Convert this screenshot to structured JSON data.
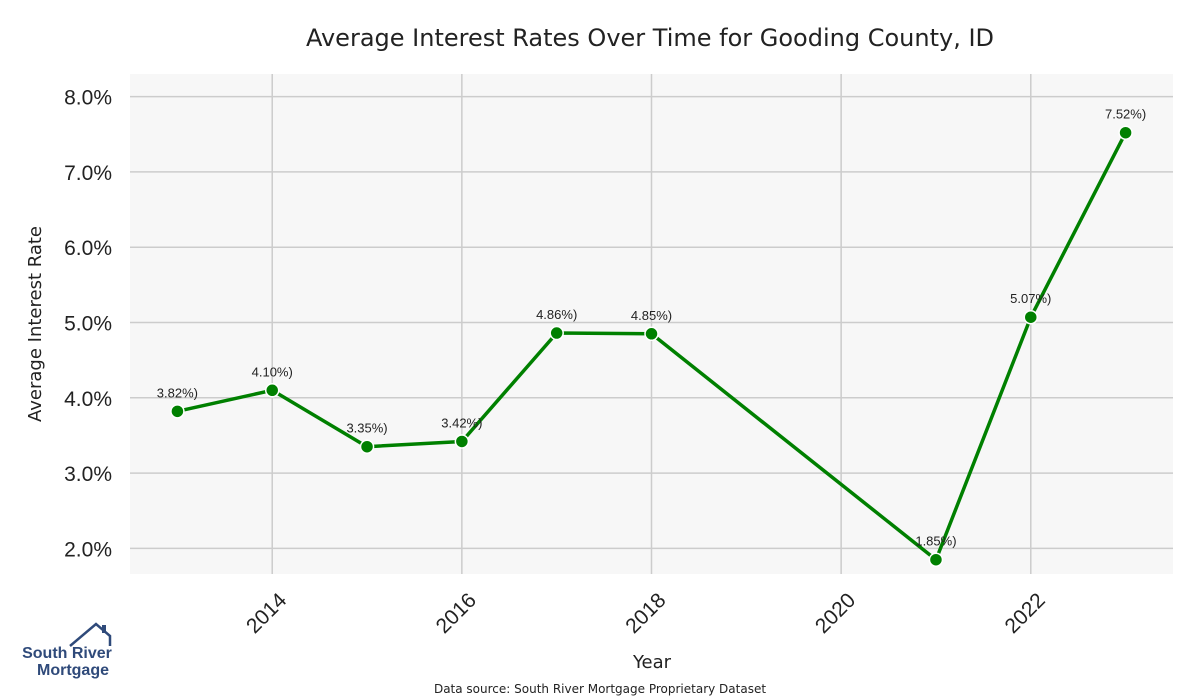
{
  "chart_data": {
    "type": "line",
    "title": "Average Interest Rates Over Time for Gooding County, ID",
    "xlabel": "Year",
    "ylabel": "Average Interest Rate",
    "x": [
      2013,
      2014,
      2015,
      2016,
      2017,
      2018,
      2021,
      2022,
      2023
    ],
    "values": [
      3.82,
      4.1,
      3.35,
      3.42,
      4.86,
      4.85,
      1.85,
      5.07,
      7.52
    ],
    "labels": [
      "3.82%)",
      "4.10%)",
      "3.35%)",
      "3.42%)",
      "4.86%)",
      "4.85%)",
      "1.85%)",
      "5.07%)",
      "7.52%)"
    ],
    "xticks": [
      2014,
      2016,
      2018,
      2020,
      2022
    ],
    "yticks": [
      2.0,
      3.0,
      4.0,
      5.0,
      6.0,
      7.0,
      8.0
    ],
    "ytick_labels": [
      "2.0%",
      "3.0%",
      "4.0%",
      "5.0%",
      "6.0%",
      "7.0%",
      "8.0%"
    ],
    "xlim": [
      2012.5,
      2023.5
    ],
    "ylim": [
      1.66,
      8.3
    ],
    "grid": true,
    "line_color": "#008000",
    "plot_background": "#f7f7f7",
    "grid_color": "#cccccc"
  },
  "footer": {
    "source": "Data source: South River Mortgage Proprietary Dataset"
  },
  "logo": {
    "line1": "South River",
    "line2": "Mortgage",
    "color": "#2f4a7a"
  }
}
